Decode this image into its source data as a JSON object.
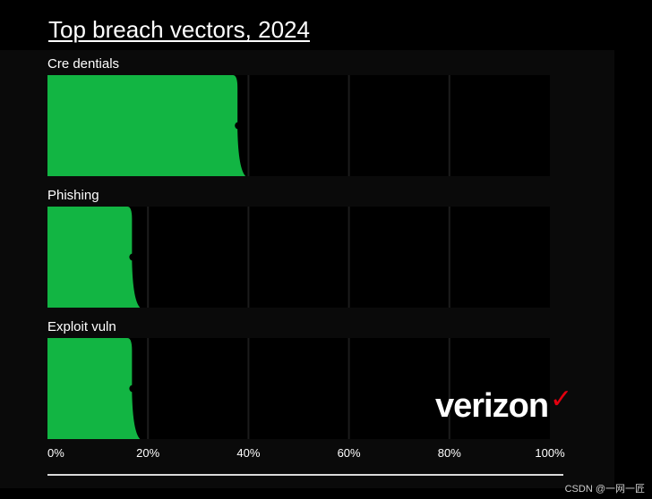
{
  "page": {
    "title": "Top breach vectors, 2024",
    "logo_text": "verizon",
    "logo_check": "✓",
    "watermark": "CSDN @一网一匠",
    "colors": {
      "bar": "#12b543",
      "track": "#000000",
      "grid": "#1c1c1c",
      "marker": "#000000",
      "logo_check": "#e3000f"
    }
  },
  "chart_data": {
    "type": "bar",
    "orientation": "horizontal",
    "title": "Top breach vectors, 2024",
    "categories": [
      "Cre dentials",
      "Phishing",
      "Exploit vuln"
    ],
    "values": [
      38,
      17,
      17
    ],
    "xlim": [
      0,
      100
    ],
    "xticks": [
      "0%",
      "20%",
      "40%",
      "60%",
      "80%",
      "100%"
    ],
    "grid": true
  }
}
